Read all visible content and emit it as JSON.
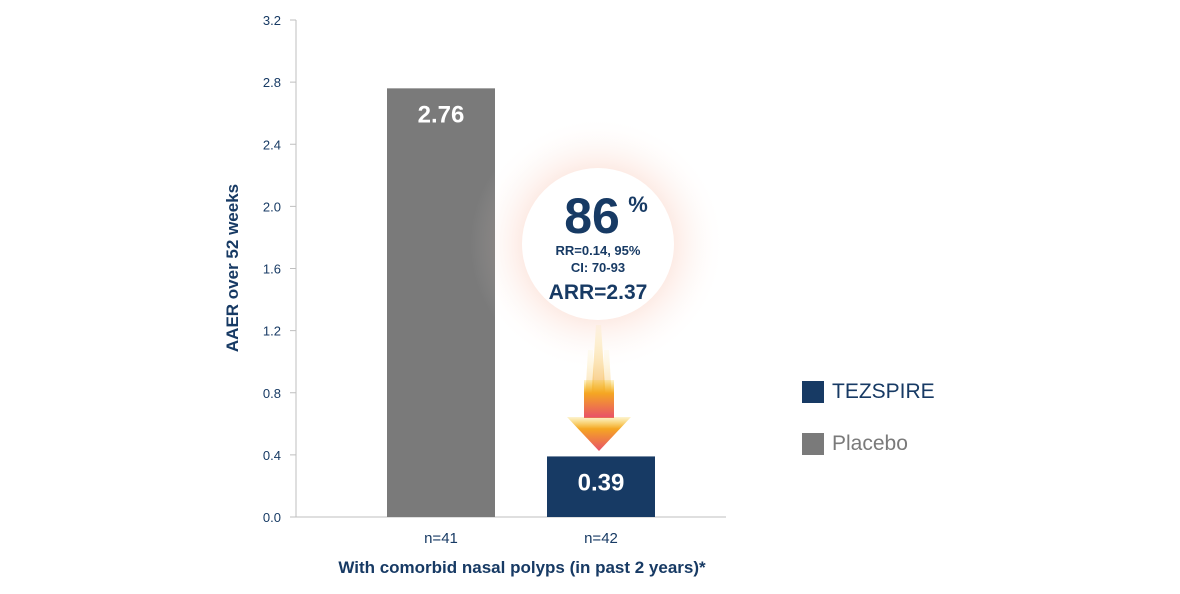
{
  "chart_data": {
    "type": "bar",
    "ylabel": "AAER over 52 weeks",
    "xlabel": "With comorbid nasal polyps (in past 2 years)*",
    "ylim": [
      0,
      3.2
    ],
    "yticks": [
      "0.0",
      "0.4",
      "0.8",
      "1.2",
      "1.6",
      "2.0",
      "2.4",
      "2.8",
      "3.2"
    ],
    "categories": [
      "n=41",
      "n=42"
    ],
    "series": [
      {
        "name": "Placebo",
        "values": [
          2.76,
          null
        ],
        "labels": [
          "2.76",
          ""
        ]
      },
      {
        "name": "TEZSPIRE",
        "values": [
          null,
          0.39
        ],
        "labels": [
          "",
          "0.39"
        ]
      }
    ],
    "annotation": {
      "percent_value": "86",
      "percent_sign": "%",
      "line1": "RR=0.14, 95%",
      "line2": "CI: 70-93",
      "line3": "ARR=2.37"
    },
    "legend": [
      {
        "label": "TEZSPIRE",
        "color": "#173a64"
      },
      {
        "label": "Placebo",
        "color": "#7a7a7a"
      }
    ],
    "colors": {
      "placebo": "#7a7a7a",
      "tezspire": "#173a64",
      "axis_text": "#173a64",
      "arrow_top": "#f5c518",
      "arrow_bottom": "#e8506a"
    }
  }
}
